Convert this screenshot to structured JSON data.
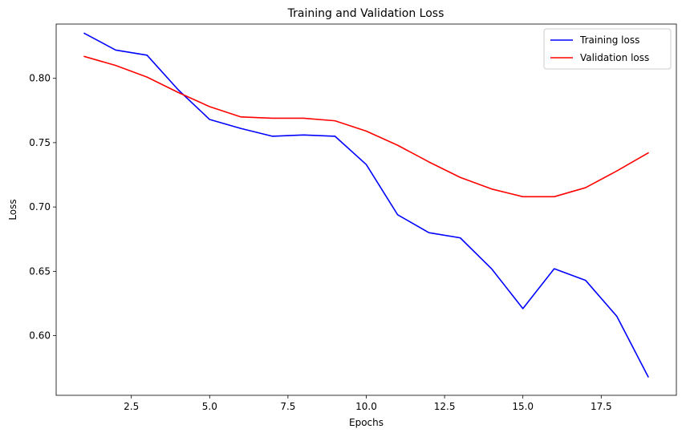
{
  "chart_data": {
    "type": "line",
    "title": "Training and Validation Loss",
    "xlabel": "Epochs",
    "ylabel": "Loss",
    "xlim": [
      0.1,
      19.9
    ],
    "ylim": [
      0.5536,
      0.8422
    ],
    "xticks": [
      2.5,
      5.0,
      7.5,
      10.0,
      12.5,
      15.0,
      17.5
    ],
    "xtick_labels": [
      "2.5",
      "5.0",
      "7.5",
      "10.0",
      "12.5",
      "15.0",
      "17.5"
    ],
    "yticks": [
      0.6,
      0.65,
      0.7,
      0.75,
      0.8
    ],
    "ytick_labels": [
      "0.60",
      "0.65",
      "0.70",
      "0.75",
      "0.80"
    ],
    "grid": false,
    "legend_position": "top-right",
    "x": [
      1,
      2,
      3,
      4,
      5,
      6,
      7,
      8,
      9,
      10,
      11,
      12,
      13,
      14,
      15,
      16,
      17,
      18,
      19
    ],
    "series": [
      {
        "name": "Training loss",
        "color": "#0000ff",
        "values": [
          0.835,
          0.822,
          0.818,
          0.791,
          0.768,
          0.761,
          0.755,
          0.756,
          0.755,
          0.733,
          0.694,
          0.68,
          0.676,
          0.652,
          0.621,
          0.652,
          0.643,
          0.615,
          0.568
        ]
      },
      {
        "name": "Validation loss",
        "color": "#ff0000",
        "values": [
          0.817,
          0.81,
          0.801,
          0.789,
          0.778,
          0.77,
          0.769,
          0.769,
          0.767,
          0.759,
          0.748,
          0.735,
          0.723,
          0.714,
          0.708,
          0.708,
          0.715,
          0.728,
          0.742
        ]
      }
    ]
  }
}
